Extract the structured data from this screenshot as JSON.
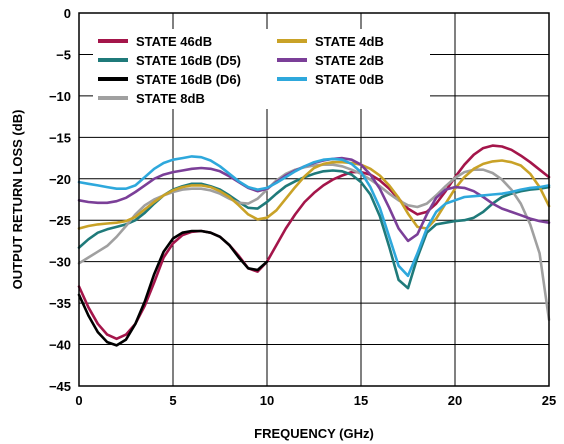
{
  "chart_data": {
    "type": "line",
    "title": "",
    "xlabel": "FREQUENCY (GHz)",
    "ylabel": "OUTPUT RETURN LOSS (dB)",
    "xlim": [
      0,
      25
    ],
    "ylim": [
      -45,
      0
    ],
    "xticks": [
      0,
      5,
      10,
      15,
      20,
      25
    ],
    "yticks": [
      0,
      -5,
      -10,
      -15,
      -20,
      -25,
      -30,
      -35,
      -40,
      -45
    ],
    "grid": true,
    "legend_placement": "top",
    "series": [
      {
        "name": "STATE 46dB",
        "color": "#a4154a",
        "x": [
          0,
          0.5,
          1,
          1.5,
          2,
          2.5,
          3,
          3.5,
          4,
          4.5,
          5,
          5.5,
          6,
          6.5,
          7,
          7.5,
          8,
          8.5,
          9,
          9.5,
          10,
          10.5,
          11,
          11.5,
          12,
          12.5,
          13,
          13.5,
          14,
          14.5,
          15,
          15.5,
          16,
          16.5,
          17,
          17.5,
          18,
          18.5,
          19,
          19.5,
          20,
          20.5,
          21,
          21.5,
          22,
          22.5,
          23,
          23.5,
          24,
          24.5,
          25
        ],
        "y": [
          -33,
          -35.5,
          -37.5,
          -38.8,
          -39.3,
          -38.8,
          -37.5,
          -35.3,
          -32.5,
          -29.5,
          -27.8,
          -26.8,
          -26.4,
          -26.3,
          -26.5,
          -27,
          -28,
          -29.3,
          -30.8,
          -31.2,
          -30,
          -28,
          -26,
          -24.3,
          -22.8,
          -21.7,
          -20.8,
          -20.1,
          -19.6,
          -19.2,
          -19.2,
          -19.5,
          -20.2,
          -21.2,
          -22.4,
          -23.6,
          -24.3,
          -24,
          -23,
          -21.5,
          -19.8,
          -18.3,
          -17.1,
          -16.3,
          -16,
          -16.1,
          -16.5,
          -17.2,
          -18,
          -18.9,
          -19.8
        ]
      },
      {
        "name": "STATE 16dB (D5)",
        "color": "#1f7a7a",
        "x": [
          0,
          0.5,
          1,
          1.5,
          2,
          2.5,
          3,
          3.5,
          4,
          4.5,
          5,
          5.5,
          6,
          6.5,
          7,
          7.5,
          8,
          8.5,
          9,
          9.5,
          10,
          10.5,
          11,
          11.5,
          12,
          12.5,
          13,
          13.5,
          14,
          14.5,
          15,
          15.5,
          16,
          16.5,
          17,
          17.5,
          18,
          18.5,
          19,
          19.5,
          20,
          20.5,
          21,
          21.5,
          22,
          22.5,
          23,
          23.5,
          24,
          24.5,
          25
        ],
        "y": [
          -28.3,
          -27.3,
          -26.5,
          -26.1,
          -25.8,
          -25.5,
          -25,
          -24.1,
          -23,
          -22,
          -21.3,
          -20.9,
          -20.6,
          -20.6,
          -20.9,
          -21.3,
          -22,
          -22.8,
          -23.5,
          -23.6,
          -22.8,
          -21.8,
          -20.9,
          -20.3,
          -19.8,
          -19.4,
          -19.1,
          -19,
          -19.1,
          -19.5,
          -20.4,
          -21.9,
          -24.5,
          -28.2,
          -32.2,
          -33.2,
          -29.5,
          -26.5,
          -25.5,
          -25.3,
          -25.1,
          -25,
          -24.7,
          -24,
          -23,
          -22.2,
          -21.8,
          -21.5,
          -21.3,
          -21.2,
          -21
        ]
      },
      {
        "name": "STATE 16dB (D6)",
        "color": "#000000",
        "x": [
          0,
          0.5,
          1,
          1.5,
          2,
          2.5,
          3,
          3.5,
          4,
          4.5,
          5,
          5.5,
          6,
          6.5,
          7,
          7.5,
          8,
          8.5,
          9,
          9.5,
          10
        ],
        "y": [
          -34,
          -36.5,
          -38.5,
          -39.7,
          -40.1,
          -39.4,
          -37.5,
          -34.8,
          -31.5,
          -28.8,
          -27.2,
          -26.5,
          -26.3,
          -26.3,
          -26.5,
          -27,
          -28,
          -29.5,
          -30.8,
          -31,
          -30
        ]
      },
      {
        "name": "STATE 8dB",
        "color": "#a0a0a0",
        "x": [
          0,
          0.5,
          1,
          1.5,
          2,
          2.5,
          3,
          3.5,
          4,
          4.5,
          5,
          5.5,
          6,
          6.5,
          7,
          7.5,
          8,
          8.5,
          9,
          9.5,
          10,
          10.5,
          11,
          11.5,
          12,
          12.5,
          13,
          13.5,
          14,
          14.5,
          15,
          15.5,
          16,
          16.5,
          17,
          17.5,
          18,
          18.5,
          19,
          19.5,
          20,
          20.5,
          21,
          21.5,
          22,
          22.5,
          23,
          23.5,
          24,
          24.5,
          25
        ],
        "y": [
          -30.2,
          -29.5,
          -28.8,
          -28.1,
          -27,
          -25.7,
          -24.3,
          -23.2,
          -22.5,
          -22,
          -21.6,
          -21.3,
          -21.2,
          -21.2,
          -21.4,
          -21.8,
          -22.4,
          -22.9,
          -23,
          -22.4,
          -21.3,
          -20.2,
          -19.4,
          -18.9,
          -18.6,
          -18.4,
          -18.3,
          -18.3,
          -18.5,
          -18.9,
          -19.4,
          -20.1,
          -20.9,
          -21.8,
          -22.6,
          -23.2,
          -23.4,
          -23,
          -22,
          -20.9,
          -19.9,
          -19.2,
          -18.9,
          -18.9,
          -19.3,
          -20.1,
          -21.3,
          -23,
          -25.5,
          -29,
          -37
        ]
      },
      {
        "name": "STATE 4dB",
        "color": "#c9a227",
        "x": [
          0,
          0.5,
          1,
          1.5,
          2,
          2.5,
          3,
          3.5,
          4,
          4.5,
          5,
          5.5,
          6,
          6.5,
          7,
          7.5,
          8,
          8.5,
          9,
          9.5,
          10,
          10.5,
          11,
          11.5,
          12,
          12.5,
          13,
          13.5,
          14,
          14.5,
          15,
          15.5,
          16,
          16.5,
          17,
          17.5,
          18,
          18.5,
          19,
          19.5,
          20,
          20.5,
          21,
          21.5,
          22,
          22.5,
          23,
          23.5,
          24,
          24.5,
          25
        ],
        "y": [
          -26,
          -25.7,
          -25.5,
          -25.4,
          -25.3,
          -25.1,
          -24.6,
          -23.7,
          -22.8,
          -22,
          -21.4,
          -21,
          -20.8,
          -20.8,
          -21,
          -21.5,
          -22.2,
          -23.2,
          -24.3,
          -24.9,
          -24.7,
          -23.8,
          -22.4,
          -21,
          -19.7,
          -18.7,
          -18.2,
          -18,
          -18,
          -18.1,
          -18.3,
          -18.8,
          -19.6,
          -20.8,
          -22.3,
          -24.2,
          -25.8,
          -26,
          -24.8,
          -23,
          -21.2,
          -19.8,
          -18.8,
          -18.2,
          -17.9,
          -17.8,
          -18,
          -18.4,
          -19.4,
          -21,
          -23.3
        ]
      },
      {
        "name": "STATE 2dB",
        "color": "#7b3f98",
        "x": [
          0,
          0.5,
          1,
          1.5,
          2,
          2.5,
          3,
          3.5,
          4,
          4.5,
          5,
          5.5,
          6,
          6.5,
          7,
          7.5,
          8,
          8.5,
          9,
          9.5,
          10,
          10.5,
          11,
          11.5,
          12,
          12.5,
          13,
          13.5,
          14,
          14.5,
          15,
          15.5,
          16,
          16.5,
          17,
          17.5,
          18,
          18.5,
          19,
          19.5,
          20,
          20.5,
          21,
          21.5,
          22,
          22.5,
          23,
          23.5,
          24,
          24.5,
          25
        ],
        "y": [
          -22.6,
          -22.8,
          -22.9,
          -22.9,
          -22.7,
          -22.3,
          -21.6,
          -20.8,
          -20,
          -19.5,
          -19.2,
          -19,
          -18.8,
          -18.7,
          -18.8,
          -19.1,
          -19.7,
          -20.4,
          -21.1,
          -21.5,
          -21.2,
          -20.4,
          -19.6,
          -19,
          -18.5,
          -18.1,
          -17.8,
          -17.6,
          -17.5,
          -17.7,
          -18.3,
          -19.5,
          -21.2,
          -23.5,
          -26,
          -27.5,
          -26.7,
          -24.3,
          -22.3,
          -21.3,
          -21,
          -21.1,
          -21.5,
          -22.2,
          -23,
          -23.6,
          -24,
          -24.4,
          -24.8,
          -25.1,
          -25.3
        ]
      },
      {
        "name": "STATE 0dB",
        "color": "#2ea8dc",
        "x": [
          0,
          0.5,
          1,
          1.5,
          2,
          2.5,
          3,
          3.5,
          4,
          4.5,
          5,
          5.5,
          6,
          6.5,
          7,
          7.5,
          8,
          8.5,
          9,
          9.5,
          10,
          10.5,
          11,
          11.5,
          12,
          12.5,
          13,
          13.5,
          14,
          14.5,
          15,
          15.5,
          16,
          16.5,
          17,
          17.5,
          18,
          18.5,
          19,
          19.5,
          20,
          20.5,
          21,
          21.5,
          22,
          22.5,
          23,
          23.5,
          24,
          24.5,
          25
        ],
        "y": [
          -20.4,
          -20.6,
          -20.8,
          -21,
          -21.2,
          -21.2,
          -20.8,
          -19.8,
          -18.8,
          -18.1,
          -17.7,
          -17.5,
          -17.3,
          -17.4,
          -17.8,
          -18.5,
          -19.4,
          -20.3,
          -21,
          -21.3,
          -21.1,
          -20.5,
          -19.8,
          -19.1,
          -18.5,
          -18,
          -17.7,
          -17.6,
          -17.7,
          -18.2,
          -19.2,
          -21,
          -23.5,
          -27,
          -30.5,
          -31.7,
          -29,
          -26,
          -24,
          -23,
          -22.6,
          -22.2,
          -22.1,
          -22,
          -21.9,
          -21.8,
          -21.6,
          -21.3,
          -21.1,
          -21,
          -20.8
        ]
      }
    ]
  }
}
